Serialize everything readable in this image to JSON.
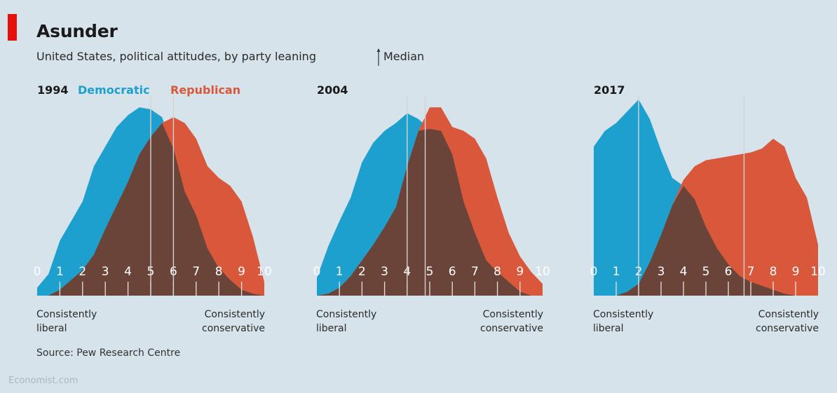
{
  "header": {
    "title": "Asunder",
    "subtitle": "United States, political attitudes, by party leaning",
    "median_key": "Median"
  },
  "footer": {
    "source": "Source: Pew Research Centre",
    "credit": "Economist.com"
  },
  "colors": {
    "democratic": "#1ea0cf",
    "republican": "#d9573a",
    "overlap": "#6b4439",
    "median_line": "#d3d3d3",
    "background": "#d6e3ea",
    "tick_text": "#ffffff"
  },
  "chart_data": [
    {
      "type": "area",
      "title": "1994",
      "legend": [
        "Democratic",
        "Republican"
      ],
      "xlabel_left": "Consistently liberal",
      "xlabel_right": "Consistently conservative",
      "x": [
        0,
        0.5,
        1,
        1.5,
        2,
        2.5,
        3,
        3.5,
        4,
        4.5,
        5,
        5.5,
        6,
        6.5,
        7,
        7.5,
        8,
        8.5,
        9,
        9.5,
        10
      ],
      "xlim": [
        0,
        10
      ],
      "ylim": [
        0,
        1
      ],
      "series": [
        {
          "name": "Democratic",
          "values": [
            0.04,
            0.11,
            0.28,
            0.38,
            0.48,
            0.66,
            0.76,
            0.86,
            0.92,
            0.96,
            0.95,
            0.91,
            0.75,
            0.53,
            0.41,
            0.24,
            0.14,
            0.08,
            0.03,
            0.01,
            0.0
          ]
        },
        {
          "name": "Republican",
          "values": [
            0.0,
            0.0,
            0.03,
            0.08,
            0.13,
            0.21,
            0.34,
            0.46,
            0.58,
            0.72,
            0.81,
            0.88,
            0.91,
            0.88,
            0.8,
            0.66,
            0.6,
            0.56,
            0.48,
            0.3,
            0.07
          ]
        }
      ],
      "medians": {
        "Democratic": 5,
        "Republican": 6
      },
      "ticks": [
        "0",
        "1",
        "2",
        "3",
        "4",
        "5",
        "6",
        "7",
        "8",
        "9",
        "10"
      ]
    },
    {
      "type": "area",
      "title": "2004",
      "legend": [],
      "xlabel_left": "Consistently liberal",
      "xlabel_right": "Consistently conservative",
      "x": [
        0,
        0.5,
        1,
        1.5,
        2,
        2.5,
        3,
        3.5,
        4,
        4.5,
        5,
        5.5,
        6,
        6.5,
        7,
        7.5,
        8,
        8.5,
        9,
        9.5,
        10
      ],
      "xlim": [
        0,
        10
      ],
      "ylim": [
        0,
        1
      ],
      "series": [
        {
          "name": "Democratic",
          "values": [
            0.09,
            0.25,
            0.38,
            0.5,
            0.68,
            0.78,
            0.84,
            0.88,
            0.93,
            0.9,
            0.85,
            0.84,
            0.72,
            0.48,
            0.32,
            0.18,
            0.12,
            0.07,
            0.02,
            0.0,
            0.0
          ]
        },
        {
          "name": "Republican",
          "values": [
            0.0,
            0.01,
            0.04,
            0.1,
            0.18,
            0.26,
            0.35,
            0.45,
            0.66,
            0.84,
            0.96,
            0.96,
            0.86,
            0.84,
            0.8,
            0.7,
            0.5,
            0.32,
            0.2,
            0.12,
            0.06
          ]
        }
      ],
      "medians": {
        "Democratic": 4,
        "Republican": 4.8
      },
      "ticks": [
        "0",
        "1",
        "2",
        "3",
        "4",
        "5",
        "6",
        "7",
        "8",
        "9",
        "10"
      ]
    },
    {
      "type": "area",
      "title": "2017",
      "legend": [],
      "xlabel_left": "Consistently liberal",
      "xlabel_right": "Consistently conservative",
      "x": [
        0,
        0.5,
        1,
        1.5,
        2,
        2.5,
        3,
        3.5,
        4,
        4.5,
        5,
        5.5,
        6,
        6.5,
        7,
        7.5,
        8,
        8.5,
        9,
        9.5,
        10
      ],
      "xlim": [
        0,
        10
      ],
      "ylim": [
        0,
        1
      ],
      "series": [
        {
          "name": "Democratic",
          "values": [
            0.76,
            0.84,
            0.88,
            0.94,
            1.0,
            0.9,
            0.74,
            0.6,
            0.56,
            0.49,
            0.35,
            0.24,
            0.16,
            0.1,
            0.07,
            0.05,
            0.03,
            0.01,
            0.0,
            0.0,
            0.0
          ]
        },
        {
          "name": "Republican",
          "values": [
            0.0,
            0.0,
            0.0,
            0.02,
            0.06,
            0.17,
            0.31,
            0.46,
            0.59,
            0.66,
            0.69,
            0.7,
            0.71,
            0.72,
            0.73,
            0.75,
            0.8,
            0.76,
            0.6,
            0.5,
            0.26
          ]
        }
      ],
      "medians": {
        "Democratic": 2,
        "Republican": 6.7
      },
      "ticks": [
        "0",
        "1",
        "2",
        "3",
        "4",
        "5",
        "6",
        "7",
        "8",
        "9",
        "10"
      ]
    }
  ]
}
